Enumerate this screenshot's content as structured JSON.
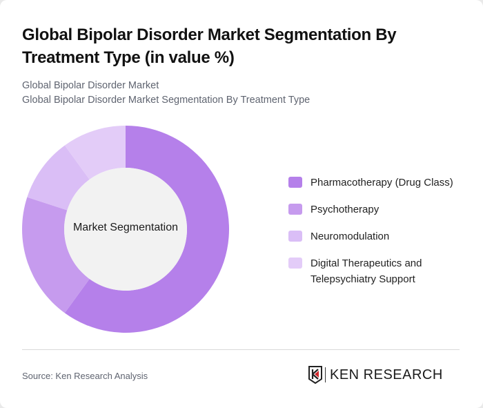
{
  "header": {
    "title": "Global Bipolar Disorder Market Segmentation By Treatment Type (in value %)",
    "subtitle_line1": "Global Bipolar Disorder Market",
    "subtitle_line2": "Global Bipolar Disorder Market Segmentation By Treatment Type"
  },
  "chart": {
    "center_label": "Market Segmentation"
  },
  "legend": {
    "items": [
      {
        "label": "Pharmacotherapy (Drug Class)",
        "color": "#B580EA"
      },
      {
        "label": "Psychotherapy",
        "color": "#C69BEE"
      },
      {
        "label": "Neuromodulation",
        "color": "#DABEF6"
      },
      {
        "label": "Digital Therapeutics and Telepsychiatry Support",
        "color": "#E3CCF8"
      }
    ]
  },
  "footer": {
    "source": "Source: Ken Research Analysis",
    "logo_text": "KEN RESEARCH"
  },
  "chart_data": {
    "type": "pie",
    "subtype": "donut",
    "title": "Global Bipolar Disorder Market Segmentation By Treatment Type (in value %)",
    "categories": [
      "Pharmacotherapy (Drug Class)",
      "Psychotherapy",
      "Neuromodulation",
      "Digital Therapeutics and Telepsychiatry Support"
    ],
    "values": [
      60,
      20,
      10,
      10
    ],
    "colors": [
      "#B580EA",
      "#C69BEE",
      "#DABEF6",
      "#E3CCF8"
    ],
    "center_label": "Market Segmentation",
    "legend_position": "right",
    "start_angle": "12 o'clock, clockwise"
  }
}
